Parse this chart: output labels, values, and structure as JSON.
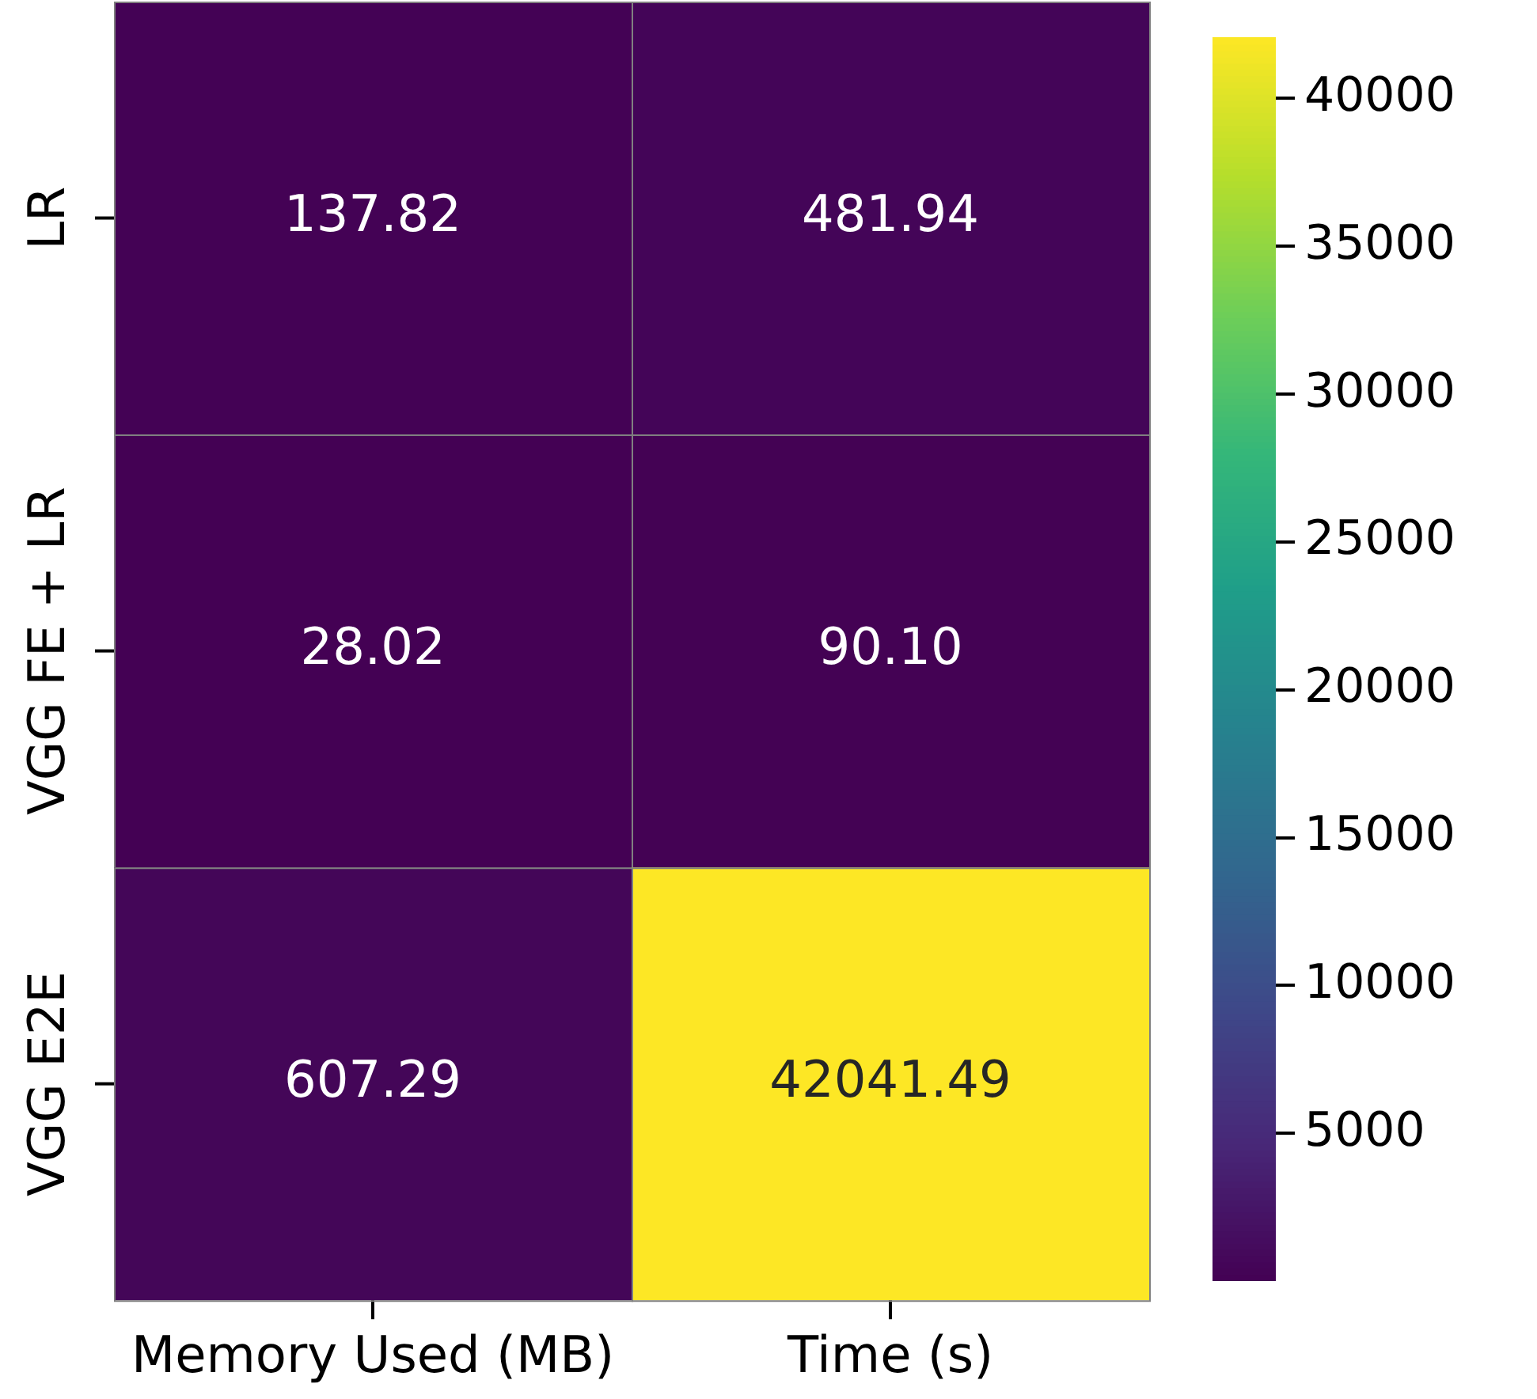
{
  "chart_data": {
    "type": "heatmap",
    "categories": [
      "Memory Used (MB)",
      "Time (s)"
    ],
    "y_categories": [
      "LR",
      "VGG FE + LR",
      "VGG E2E"
    ],
    "cells": [
      [
        137.82,
        481.94
      ],
      [
        28.02,
        90.1
      ],
      [
        607.29,
        42041.49
      ]
    ],
    "cell_labels": [
      [
        "137.82",
        "481.94"
      ],
      [
        "28.02",
        "90.10"
      ],
      [
        "607.29",
        "42041.49"
      ]
    ],
    "clim": [
      28.02,
      42041.49
    ],
    "cticks": [
      5000,
      10000,
      15000,
      20000,
      25000,
      30000,
      35000,
      40000
    ]
  }
}
